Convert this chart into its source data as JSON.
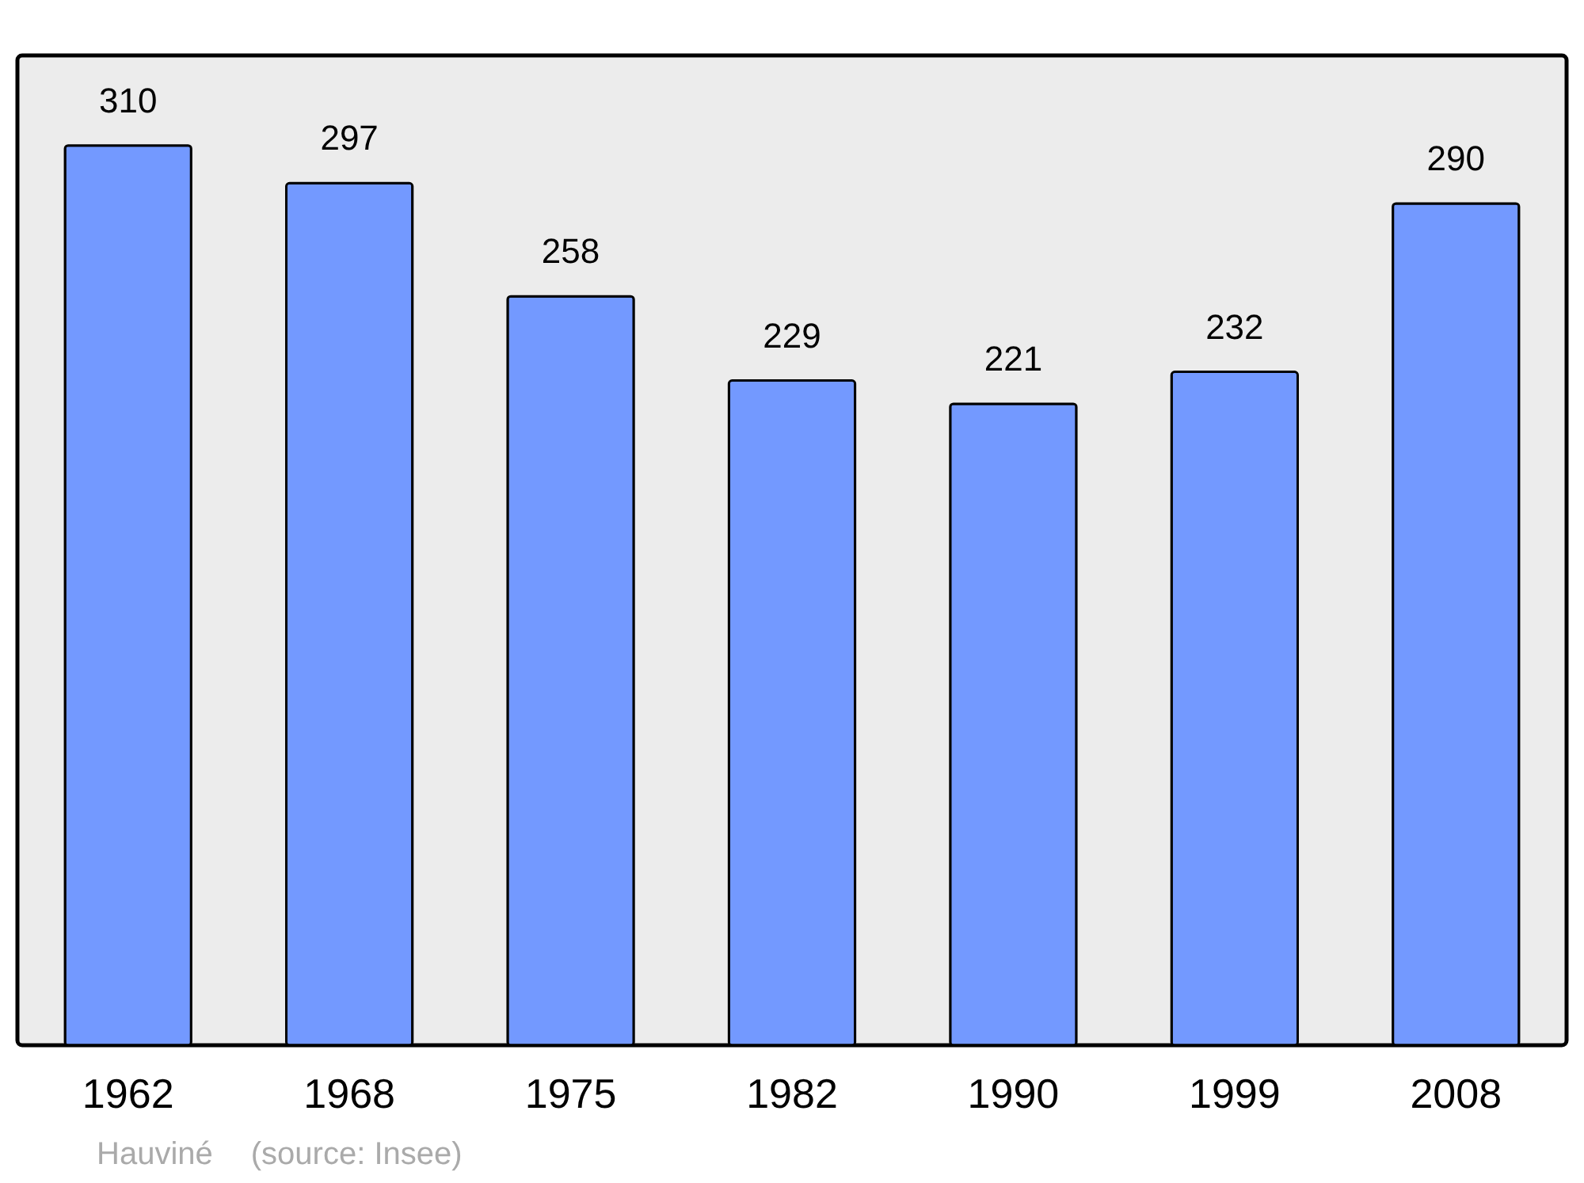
{
  "chart_data": {
    "type": "bar",
    "categories": [
      "1962",
      "1968",
      "1975",
      "1982",
      "1990",
      "1999",
      "2008"
    ],
    "values": [
      310,
      297,
      258,
      229,
      221,
      232,
      290
    ],
    "color": "#7399ff",
    "data_labels": true,
    "annotations": [
      "Hauviné",
      "(source: Insee)"
    ]
  }
}
